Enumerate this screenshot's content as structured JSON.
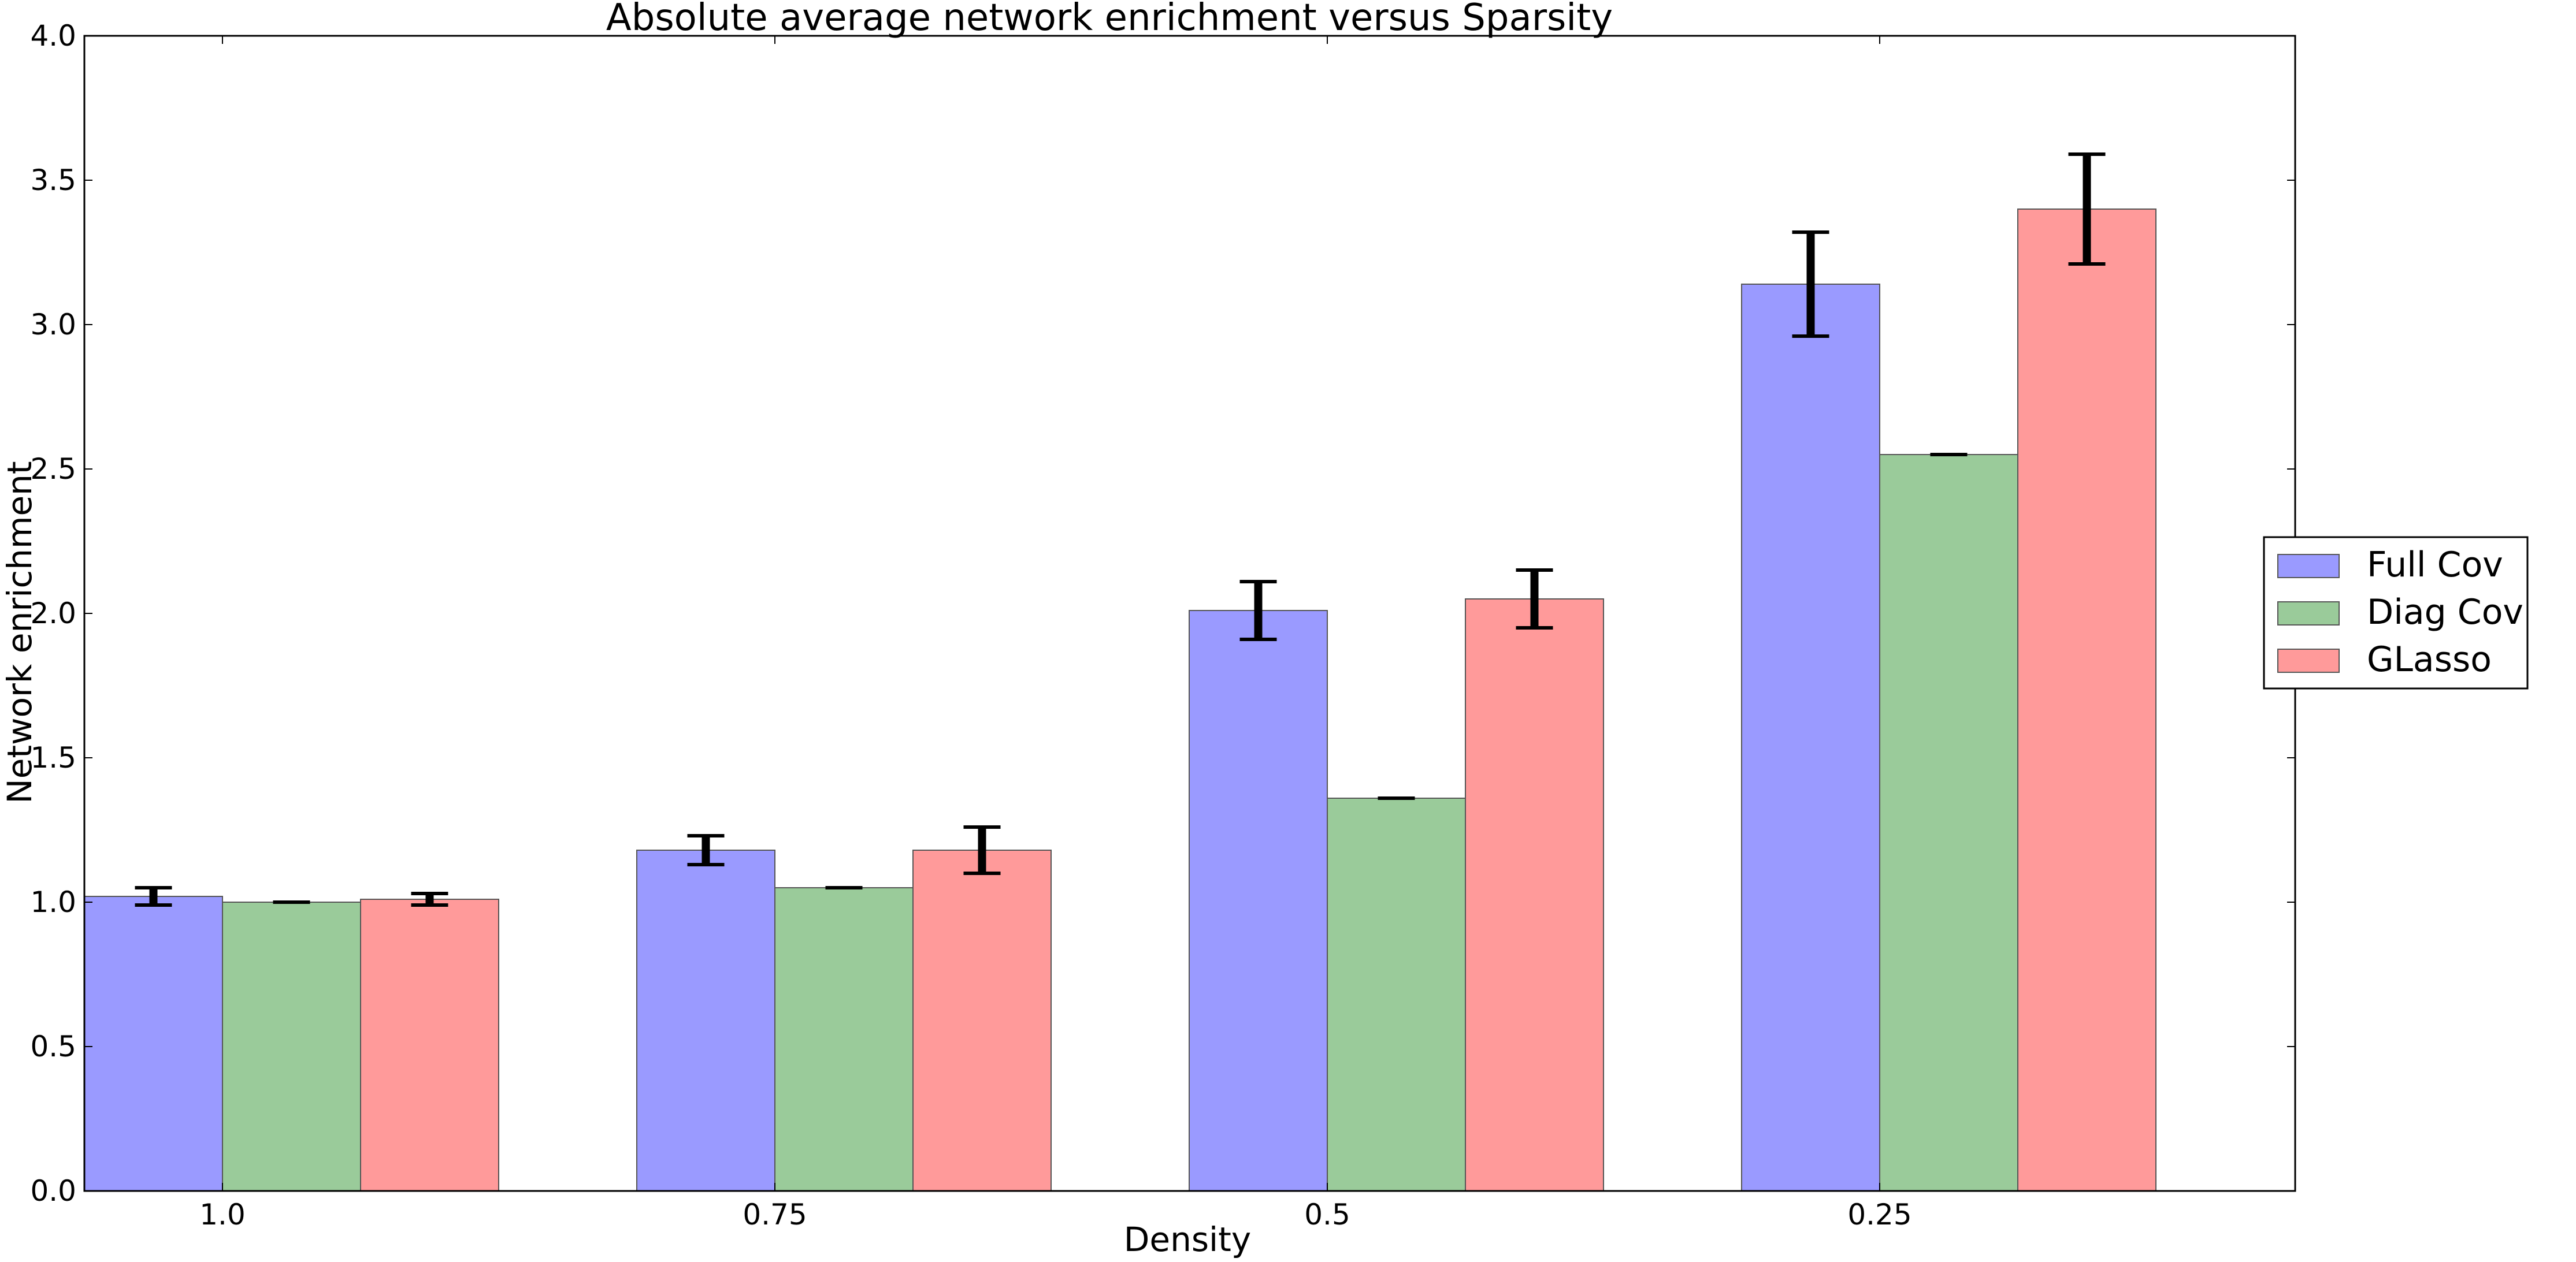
{
  "chart_data": {
    "type": "bar",
    "title": "Absolute average network enrichment versus Sparsity",
    "xlabel": "Density",
    "ylabel": "Network enrichment",
    "categories": [
      "1.0",
      "0.75",
      "0.5",
      "0.25"
    ],
    "ylim": [
      0.0,
      4.0
    ],
    "yticks": [
      "0.0",
      "0.5",
      "1.0",
      "1.5",
      "2.0",
      "2.5",
      "3.0",
      "3.5",
      "4.0"
    ],
    "grid": false,
    "legend_position": "right-outside",
    "series": [
      {
        "name": "Full Cov",
        "color": "#9a9aff",
        "values": [
          1.02,
          1.18,
          2.01,
          3.14
        ],
        "errors": [
          0.03,
          0.05,
          0.1,
          0.18
        ]
      },
      {
        "name": "Diag Cov",
        "color": "#9acb9a",
        "values": [
          1.0,
          1.05,
          1.36,
          2.55
        ],
        "errors": [
          0.0,
          0.0,
          0.0,
          0.0
        ]
      },
      {
        "name": "GLasso",
        "color": "#ff9a9a",
        "values": [
          1.01,
          1.18,
          2.05,
          3.4
        ],
        "errors": [
          0.02,
          0.08,
          0.1,
          0.19
        ]
      }
    ]
  }
}
